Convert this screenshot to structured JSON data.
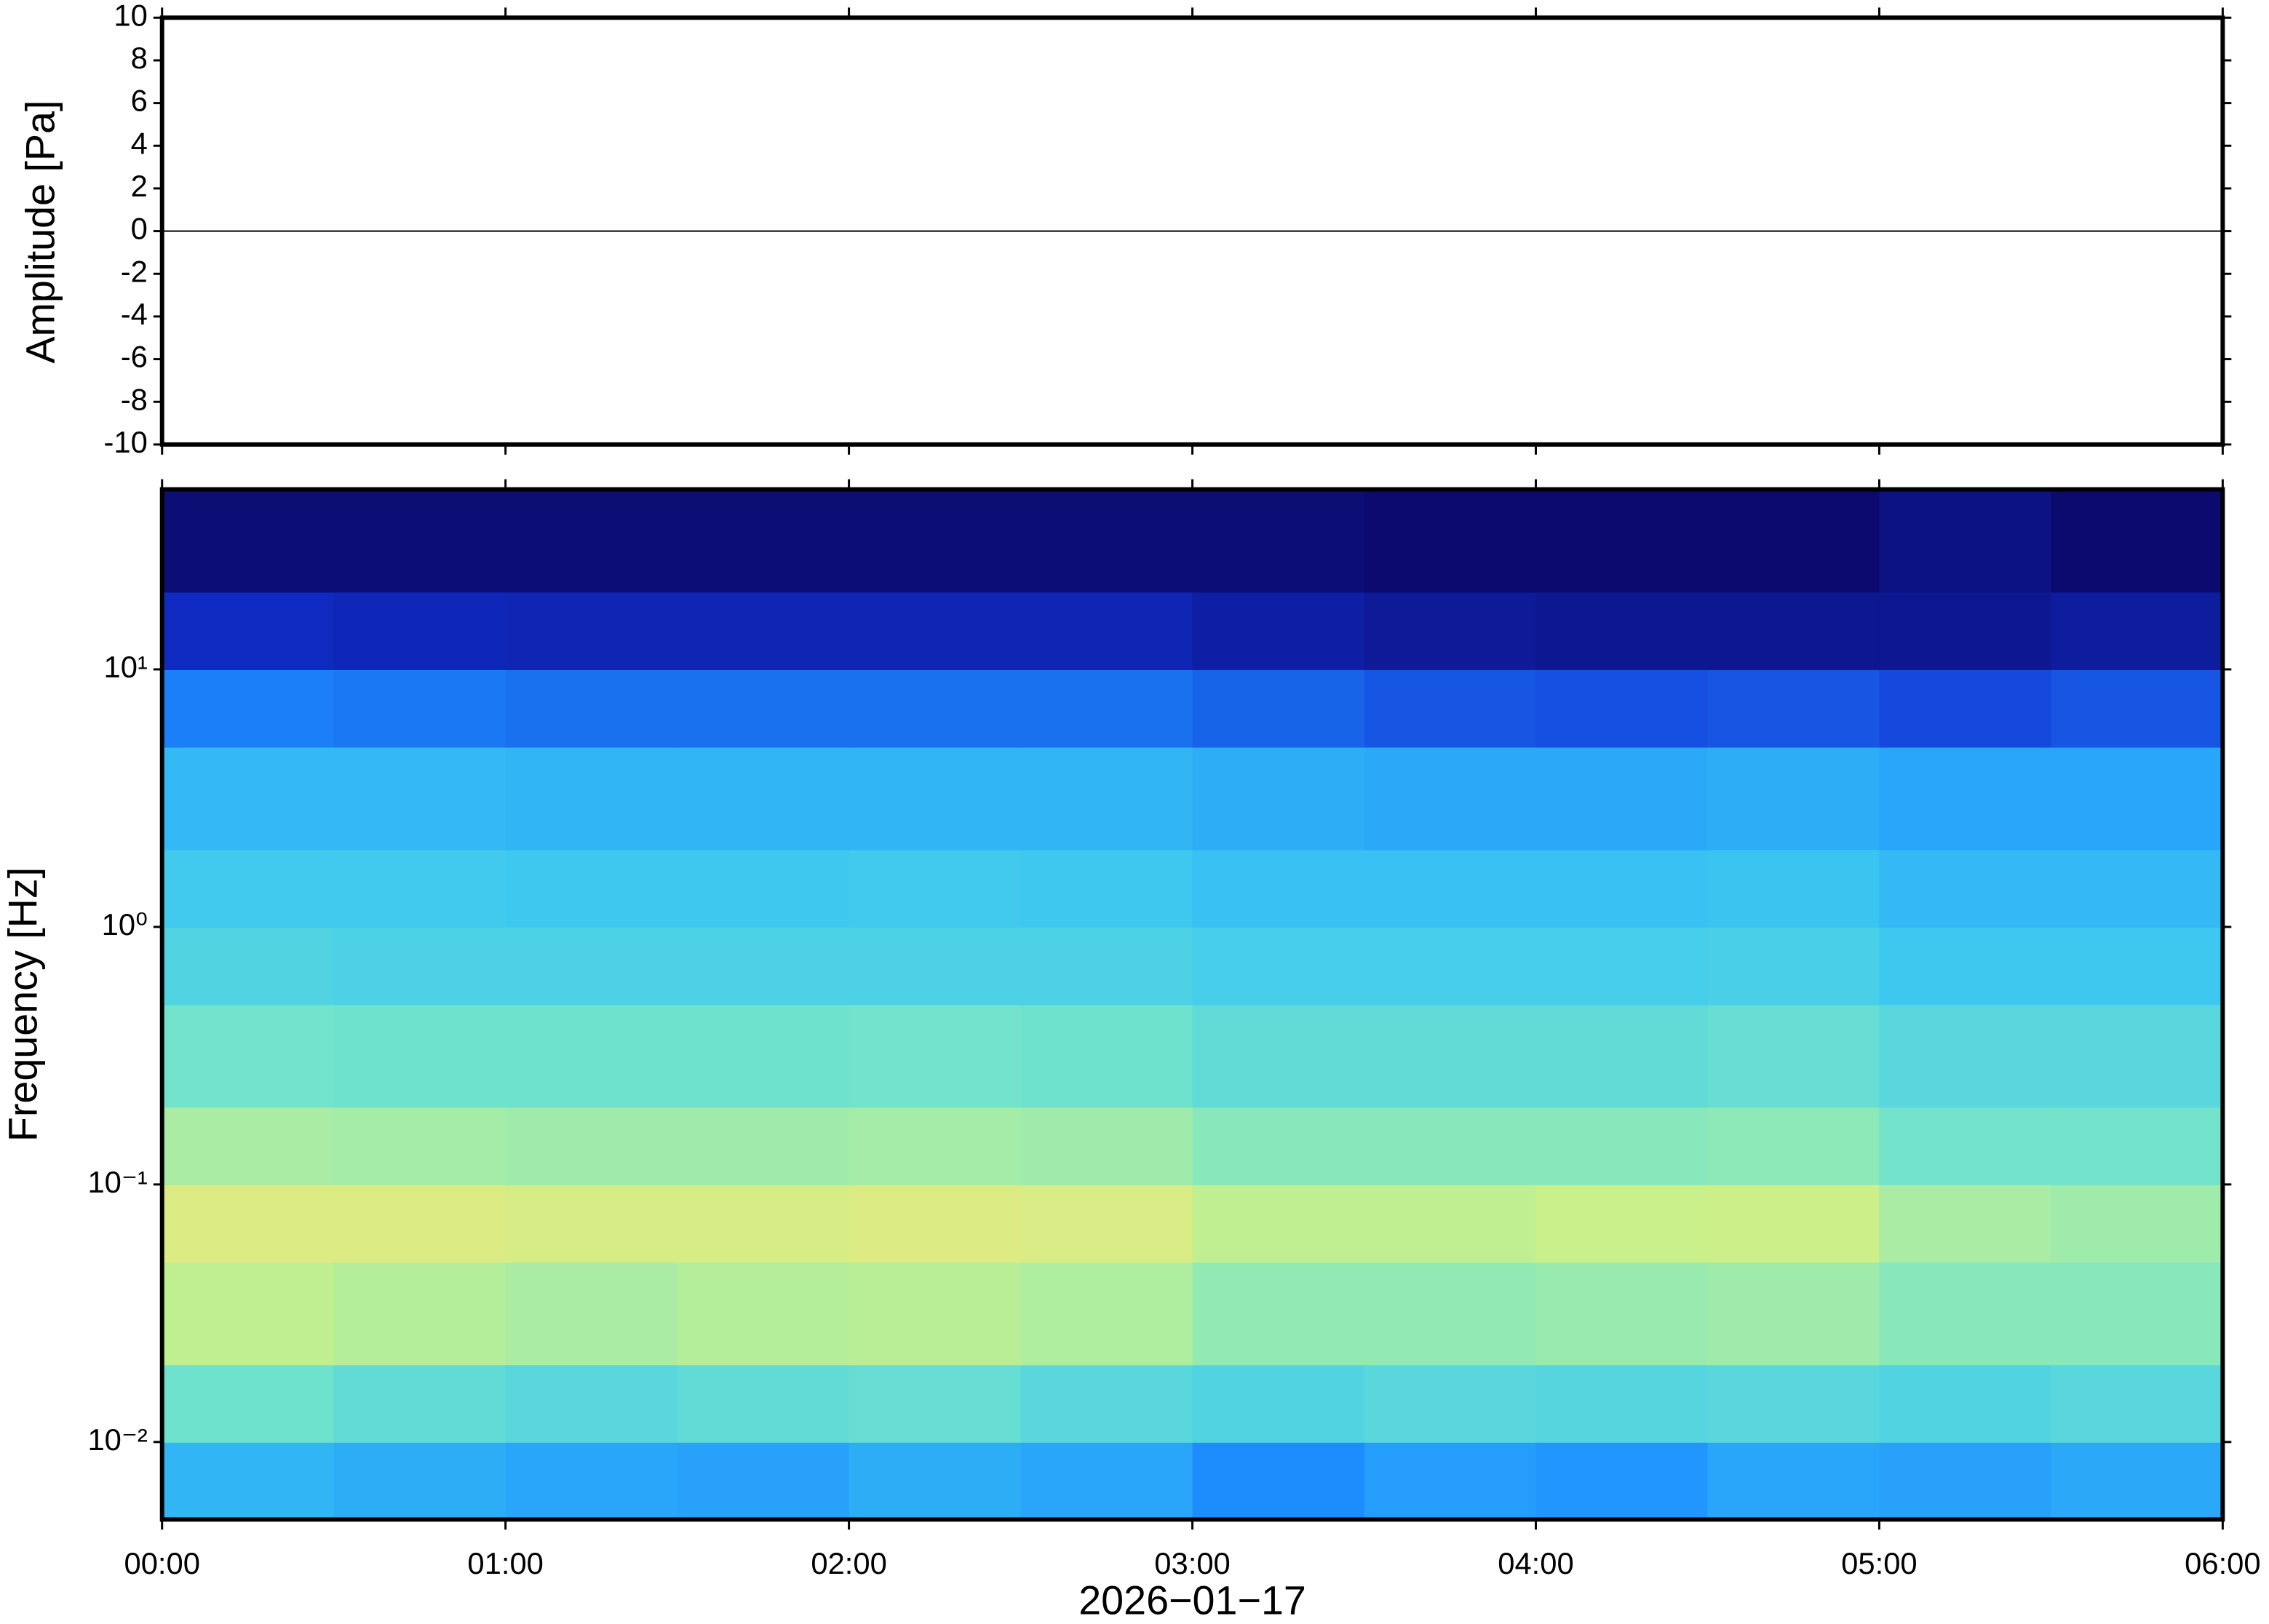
{
  "chart_data": [
    {
      "type": "line",
      "ylabel": "Amplitude [Pa]",
      "xlim": [
        0,
        6
      ],
      "ylim": [
        -10,
        10
      ],
      "yticks": [
        -10,
        -8,
        -6,
        -4,
        -2,
        0,
        2,
        4,
        6,
        8,
        10
      ],
      "x": [
        0,
        0.5,
        1,
        1.5,
        2,
        2.5,
        3,
        3.5,
        4,
        4.5,
        5,
        5.5,
        6
      ],
      "values": [
        0,
        0,
        0,
        0,
        0,
        0,
        0,
        0,
        0,
        0,
        0,
        0,
        0
      ],
      "color": "#000000"
    },
    {
      "type": "heatmap",
      "ylabel": "Frequency [Hz]",
      "xlabel": "2026−01−17",
      "xlim": [
        0,
        6
      ],
      "ylim": [
        0.005,
        50
      ],
      "ylog": true,
      "xticks": [
        {
          "value": 0,
          "label": "00:00"
        },
        {
          "value": 1,
          "label": "01:00"
        },
        {
          "value": 2,
          "label": "02:00"
        },
        {
          "value": 3,
          "label": "03:00"
        },
        {
          "value": 4,
          "label": "04:00"
        },
        {
          "value": 5,
          "label": "05:00"
        },
        {
          "value": 6,
          "label": "06:00"
        }
      ],
      "yticks": [
        {
          "value": 0.01,
          "label": "10⁻²"
        },
        {
          "value": 0.1,
          "label": "10⁻¹"
        },
        {
          "value": 1,
          "label": "10⁰"
        },
        {
          "value": 10,
          "label": "10¹"
        }
      ],
      "x_bins": [
        0,
        0.5,
        1,
        1.5,
        2,
        2.5,
        3,
        3.5,
        4,
        4.5,
        5,
        5.5,
        6
      ],
      "y_bins": [
        0.005,
        0.01,
        0.02,
        0.05,
        0.1,
        0.2,
        0.5,
        1,
        2,
        5,
        10,
        20,
        50
      ],
      "zlim": [
        0,
        1
      ],
      "colormap": [
        "#0c0a6e",
        "#1030d0",
        "#1e90ff",
        "#3cc8f0",
        "#78e6c8",
        "#c8f08c",
        "#f5e67a",
        "#f5b46e"
      ],
      "values": [
        [
          0.38,
          0.36,
          0.34,
          0.33,
          0.36,
          0.34,
          0.28,
          0.32,
          0.3,
          0.34,
          0.33,
          0.35
        ],
        [
          0.55,
          0.52,
          0.5,
          0.52,
          0.53,
          0.5,
          0.48,
          0.5,
          0.49,
          0.5,
          0.48,
          0.5
        ],
        [
          0.7,
          0.68,
          0.66,
          0.68,
          0.69,
          0.67,
          0.62,
          0.62,
          0.63,
          0.64,
          0.6,
          0.6
        ],
        [
          0.78,
          0.78,
          0.76,
          0.76,
          0.78,
          0.77,
          0.7,
          0.7,
          0.72,
          0.73,
          0.66,
          0.64
        ],
        [
          0.66,
          0.65,
          0.64,
          0.64,
          0.65,
          0.64,
          0.6,
          0.6,
          0.6,
          0.61,
          0.56,
          0.56
        ],
        [
          0.56,
          0.55,
          0.55,
          0.55,
          0.56,
          0.55,
          0.52,
          0.52,
          0.52,
          0.53,
          0.5,
          0.5
        ],
        [
          0.48,
          0.47,
          0.47,
          0.47,
          0.47,
          0.47,
          0.45,
          0.45,
          0.45,
          0.46,
          0.43,
          0.43
        ],
        [
          0.44,
          0.44,
          0.43,
          0.43,
          0.44,
          0.43,
          0.41,
          0.41,
          0.41,
          0.42,
          0.39,
          0.39
        ],
        [
          0.39,
          0.39,
          0.38,
          0.38,
          0.38,
          0.38,
          0.36,
          0.35,
          0.35,
          0.36,
          0.34,
          0.34
        ],
        [
          0.26,
          0.25,
          0.24,
          0.24,
          0.24,
          0.24,
          0.22,
          0.2,
          0.19,
          0.2,
          0.18,
          0.2
        ],
        [
          0.12,
          0.11,
          0.1,
          0.1,
          0.1,
          0.1,
          0.08,
          0.06,
          0.05,
          0.05,
          0.05,
          0.07
        ],
        [
          0.01,
          0.01,
          0.01,
          0.01,
          0.01,
          0.01,
          0.01,
          0.0,
          0.0,
          0.0,
          0.03,
          0.0
        ]
      ]
    }
  ]
}
